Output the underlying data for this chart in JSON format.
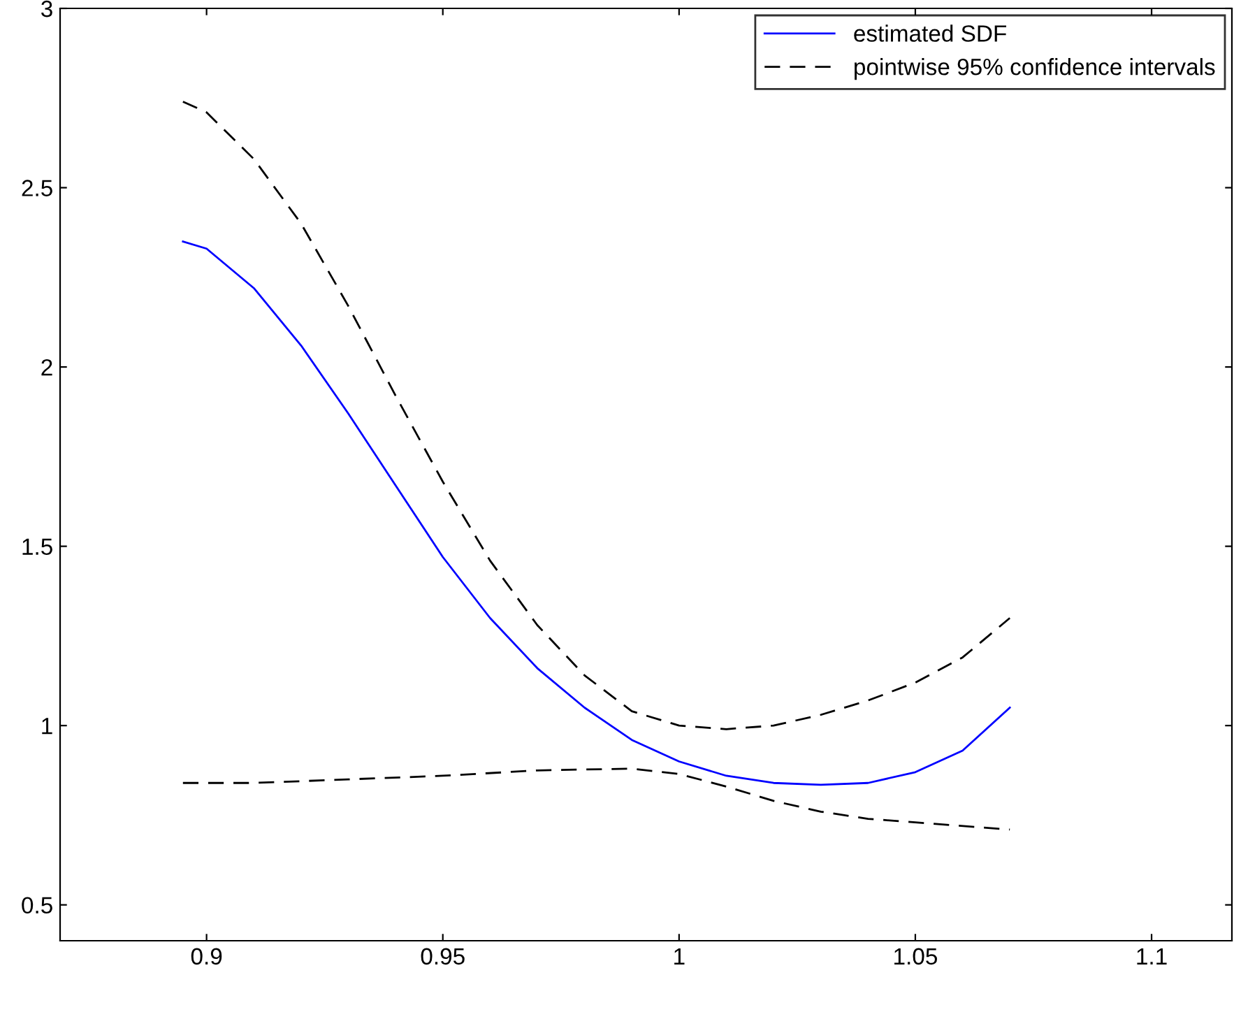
{
  "chart_data": {
    "type": "line",
    "xlim": [
      0.869,
      1.117
    ],
    "ylim": [
      0.4,
      3
    ],
    "xticks": [
      0.9,
      0.95,
      1,
      1.05,
      1.1
    ],
    "yticks": [
      0.5,
      1,
      1.5,
      2,
      2.5,
      3
    ],
    "grid": false,
    "legend": "top right",
    "marker": "none",
    "series": [
      {
        "name": "estimated SDF",
        "color": "#0000ff",
        "line_style": "solid",
        "x": [
          0.895,
          0.9,
          0.91,
          0.92,
          0.93,
          0.94,
          0.95,
          0.96,
          0.97,
          0.98,
          0.99,
          1.0,
          1.01,
          1.02,
          1.03,
          1.04,
          1.05,
          1.06,
          1.07
        ],
        "values": [
          2.35,
          2.33,
          2.22,
          2.06,
          1.87,
          1.67,
          1.47,
          1.3,
          1.16,
          1.05,
          0.96,
          0.9,
          0.86,
          0.84,
          0.835,
          0.84,
          0.87,
          0.93,
          1.05
        ]
      },
      {
        "name": "pointwise 95% confidence intervals",
        "color": "#000000",
        "line_style": "dashed",
        "x": [
          0.895,
          0.9,
          0.91,
          0.92,
          0.93,
          0.94,
          0.95,
          0.96,
          0.97,
          0.98,
          0.99,
          1.0,
          1.01,
          1.02,
          1.03,
          1.04,
          1.05,
          1.06,
          1.07
        ],
        "values": [
          2.74,
          2.71,
          2.58,
          2.4,
          2.17,
          1.92,
          1.68,
          1.46,
          1.28,
          1.14,
          1.04,
          1.0,
          0.99,
          1.0,
          1.03,
          1.07,
          1.12,
          1.19,
          1.3
        ]
      },
      {
        "color": "#000000",
        "line_style": "dashed",
        "x": [
          0.895,
          0.91,
          0.93,
          0.95,
          0.97,
          0.99,
          1.0,
          1.01,
          1.02,
          1.03,
          1.04,
          1.05,
          1.07
        ],
        "values": [
          0.84,
          0.84,
          0.85,
          0.86,
          0.875,
          0.88,
          0.865,
          0.83,
          0.79,
          0.76,
          0.74,
          0.73,
          0.71
        ]
      }
    ]
  }
}
